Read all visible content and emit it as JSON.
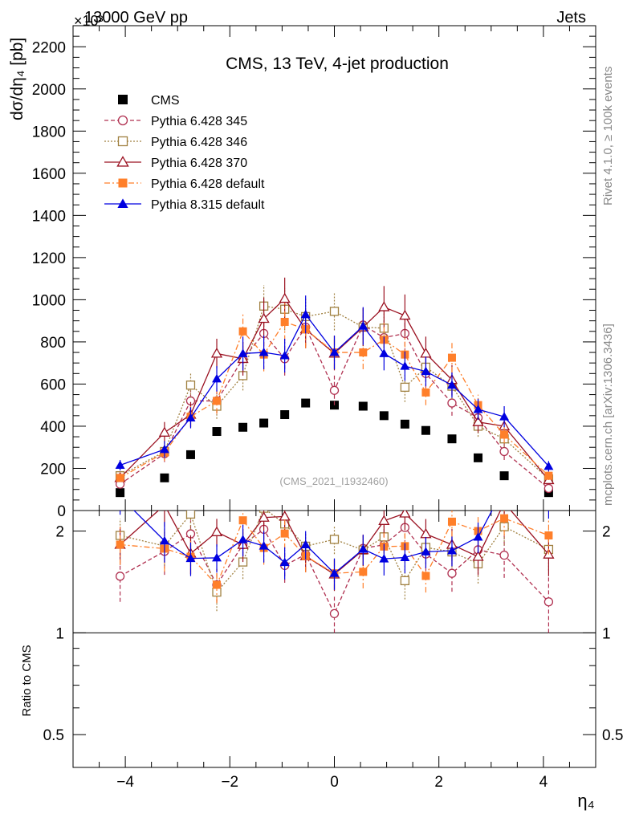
{
  "header": {
    "energy_label": "13000 GeV pp",
    "exponent_label": "×10³",
    "category_label": "Jets",
    "rivet_label": "Rivet 4.1.0, ≥ 100k events",
    "mcplots_label": "mcplots.cern.ch [arXiv:1306.3436]"
  },
  "chart_data": {
    "type": "scatter",
    "title": "CMS, 13 TeV, 4-jet production",
    "analysis_label": "(CMS_2021_I1932460)",
    "xlabel": "η₄",
    "ylabel": "dσ/dη₄ [pb]",
    "ratio_ylabel": "Ratio to CMS",
    "xlim": [
      -5,
      5
    ],
    "ylim": [
      0,
      2300
    ],
    "ratio_ylim": [
      0.4,
      2.3
    ],
    "x_ticks": [
      -4,
      -2,
      0,
      2,
      4
    ],
    "x_tick_labels": [
      "−4",
      "−2",
      "0",
      "2",
      "4"
    ],
    "y_ticks": [
      0,
      200,
      400,
      600,
      800,
      1000,
      1200,
      1400,
      1600,
      1800,
      2000,
      2200
    ],
    "y_tick_labels": [
      "0",
      "200",
      "400",
      "600",
      "800",
      "1000",
      "1200",
      "1400",
      "1600",
      "1800",
      "2000",
      "2200"
    ],
    "ratio_ticks": [
      0.5,
      1,
      2
    ],
    "ratio_tick_labels": [
      "0.5",
      "1",
      "2"
    ],
    "x": [
      -4.1,
      -3.25,
      -2.75,
      -2.25,
      -1.75,
      -1.35,
      -0.95,
      -0.55,
      0.0,
      0.55,
      0.95,
      1.35,
      1.75,
      2.25,
      2.75,
      3.25,
      4.1
    ],
    "series": [
      {
        "name": "CMS",
        "color": "#000000",
        "marker": "filled-square",
        "line": "none",
        "values": [
          85,
          155,
          265,
          375,
          395,
          415,
          455,
          510,
          500,
          495,
          450,
          410,
          380,
          340,
          250,
          165,
          85
        ]
      },
      {
        "name": "Pythia 6.428 345",
        "color": "#b03050",
        "marker": "open-circle",
        "line": "dashed",
        "values": [
          125,
          270,
          520,
          520,
          720,
          840,
          720,
          870,
          570,
          880,
          820,
          840,
          650,
          510,
          440,
          280,
          105
        ],
        "errors": [
          20,
          40,
          50,
          60,
          80,
          90,
          80,
          90,
          70,
          90,
          80,
          90,
          70,
          60,
          50,
          40,
          20
        ]
      },
      {
        "name": "Pythia 6.428 346",
        "color": "#a08040",
        "marker": "open-square",
        "line": "dotted",
        "values": [
          165,
          280,
          595,
          495,
          640,
          970,
          955,
          920,
          945,
          870,
          865,
          585,
          680,
          590,
          400,
          340,
          150
        ],
        "errors": [
          20,
          40,
          60,
          60,
          70,
          100,
          100,
          90,
          90,
          90,
          90,
          70,
          70,
          60,
          50,
          40,
          20
        ]
      },
      {
        "name": "Pythia 6.428 370",
        "color": "#9a1020",
        "marker": "open-triangle",
        "line": "solid",
        "values": [
          155,
          370,
          455,
          745,
          720,
          910,
          1005,
          860,
          745,
          870,
          965,
          925,
          745,
          620,
          420,
          400,
          145
        ],
        "errors": [
          20,
          50,
          60,
          70,
          80,
          100,
          100,
          90,
          80,
          90,
          100,
          100,
          80,
          70,
          50,
          50,
          20
        ]
      },
      {
        "name": "Pythia 6.428 default",
        "color": "#ff7f2a",
        "marker": "filled-square",
        "line": "dashdot",
        "values": [
          155,
          275,
          445,
          520,
          850,
          740,
          895,
          860,
          750,
          750,
          810,
          740,
          560,
          725,
          500,
          360,
          165
        ],
        "errors": [
          20,
          40,
          50,
          60,
          80,
          80,
          90,
          90,
          80,
          80,
          80,
          80,
          60,
          70,
          50,
          40,
          20
        ]
      },
      {
        "name": "Pythia 8.315 default",
        "color": "#0000e0",
        "marker": "filled-triangle",
        "line": "solid",
        "values": [
          215,
          290,
          440,
          625,
          745,
          750,
          735,
          930,
          750,
          875,
          745,
          685,
          660,
          595,
          480,
          445,
          210
        ],
        "errors": [
          25,
          40,
          50,
          60,
          80,
          80,
          80,
          90,
          80,
          90,
          80,
          70,
          70,
          60,
          50,
          50,
          25
        ]
      }
    ]
  }
}
